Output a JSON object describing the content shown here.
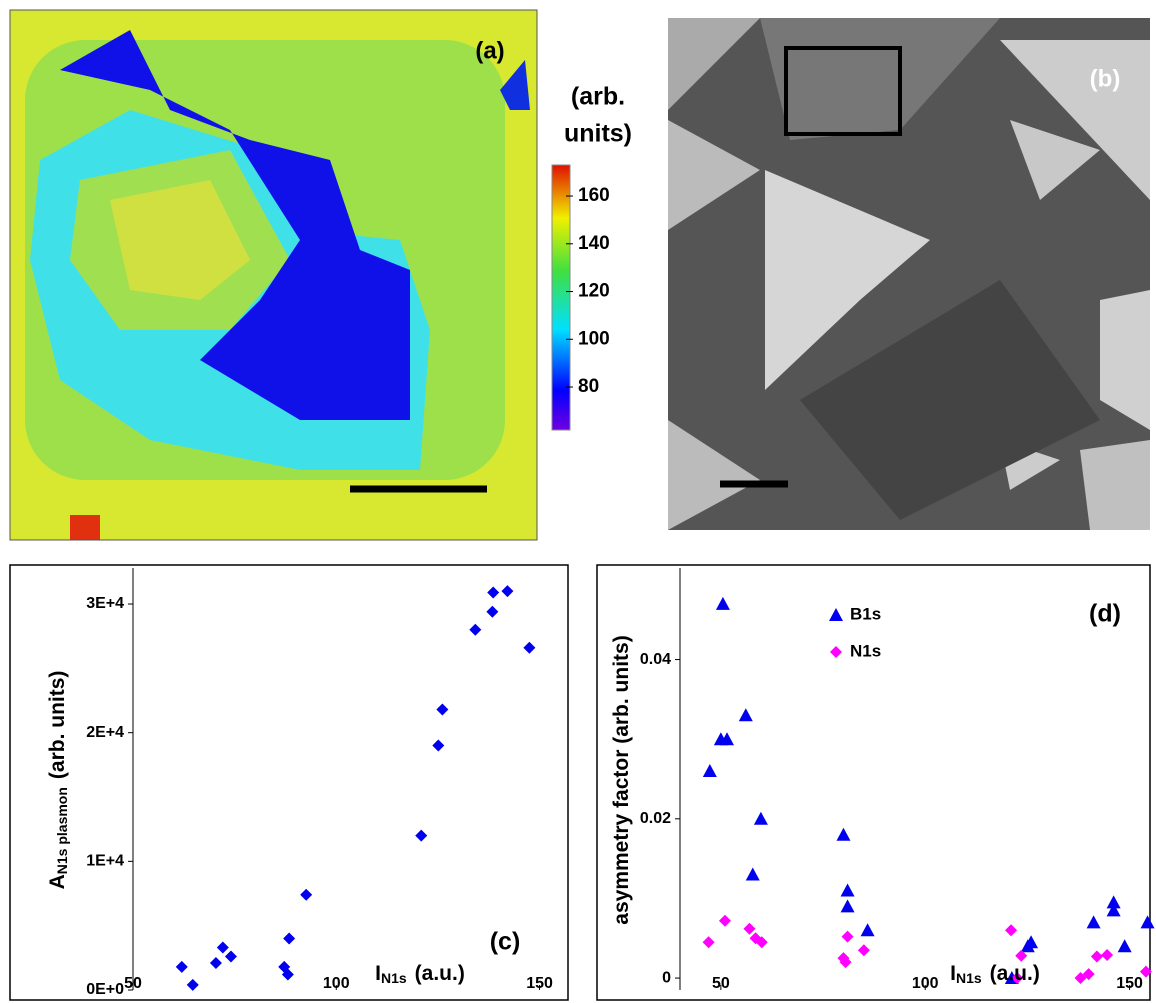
{
  "chart_data": [
    {
      "type": "heatmap",
      "label": "(a)",
      "colorbar_label": [
        "(arb.",
        "units)"
      ],
      "clim": [
        62,
        173
      ],
      "cticks": [
        80,
        100,
        120,
        140,
        160
      ]
    },
    {
      "type": "scatter",
      "label": "(c)",
      "xlabel": {
        "main": "I",
        "sub": "N1s",
        "unit": "(a.u.)"
      },
      "ylabel": {
        "main": "A",
        "sub": "N1s plasmon",
        "unit": "(arb. units)"
      },
      "marker": "diamond",
      "color": "#0000ee",
      "x": [
        62.0,
        64.7,
        70.4,
        72.1,
        74.1,
        87.2,
        88.1,
        88.4,
        92.6,
        120.9,
        125.1,
        126.1,
        134.2,
        138.4,
        138.6,
        142.1,
        147.5
      ],
      "values": [
        1800,
        400,
        2100,
        3300,
        2600,
        1800,
        1200,
        4000,
        7400,
        12000,
        19000,
        21800,
        28000,
        29400,
        30900,
        31000,
        26600
      ],
      "xlim": [
        50,
        157
      ],
      "ylim": [
        0,
        32800
      ],
      "xticks": [
        50,
        100,
        150
      ],
      "yticks": [
        {
          "value": 0,
          "label": "0E+0"
        },
        {
          "value": 10000,
          "label": "1E+4"
        },
        {
          "value": 20000,
          "label": "2E+4"
        },
        {
          "value": 30000,
          "label": "3E+4"
        }
      ]
    },
    {
      "type": "scatter",
      "label": "(d)",
      "xlabel": {
        "main": "I",
        "sub": "N1s",
        "unit": "(a.u.)"
      },
      "ylabel": {
        "main": "asymmetry factor  (arb. units)"
      },
      "legend": "top-center",
      "series": [
        {
          "name": "B1s",
          "color": "#0000ee",
          "marker": "triangle",
          "x": [
            47.3,
            50.0,
            50.5,
            51.5,
            56.1,
            57.8,
            59.8,
            80.0,
            81.0,
            81.0,
            85.9,
            121.2,
            125.1,
            125.9,
            141.2,
            146.1,
            146.1,
            148.8,
            154.4
          ],
          "values": [
            0.026,
            0.03,
            0.047,
            0.03,
            0.033,
            0.013,
            0.02,
            0.018,
            0.011,
            0.009,
            0.006,
            0,
            0.004,
            0.0045,
            0.007,
            0.0095,
            0.0085,
            0.004,
            0.007
          ]
        },
        {
          "name": "N1s",
          "color": "#ff00ff",
          "marker": "diamond",
          "x": [
            47,
            51,
            57,
            58.5,
            60,
            80,
            80.5,
            81,
            85,
            121,
            122.5,
            123.5,
            138,
            140,
            142,
            144.5,
            154
          ],
          "values": [
            0.0045,
            0.0072,
            0.0062,
            0.005,
            0.0045,
            0.0025,
            0.002,
            0.0052,
            0.0035,
            0.006,
            0,
            0.0028,
            0,
            0.0005,
            0.0027,
            0.0029,
            0.0008
          ]
        }
      ],
      "xlim": [
        40,
        155
      ],
      "ylim": [
        -0.0015,
        0.0515
      ],
      "xticks": [
        50,
        100,
        150
      ],
      "yticks": [
        0,
        0.02,
        0.04
      ]
    }
  ],
  "image_b": {
    "label": "(b)"
  }
}
